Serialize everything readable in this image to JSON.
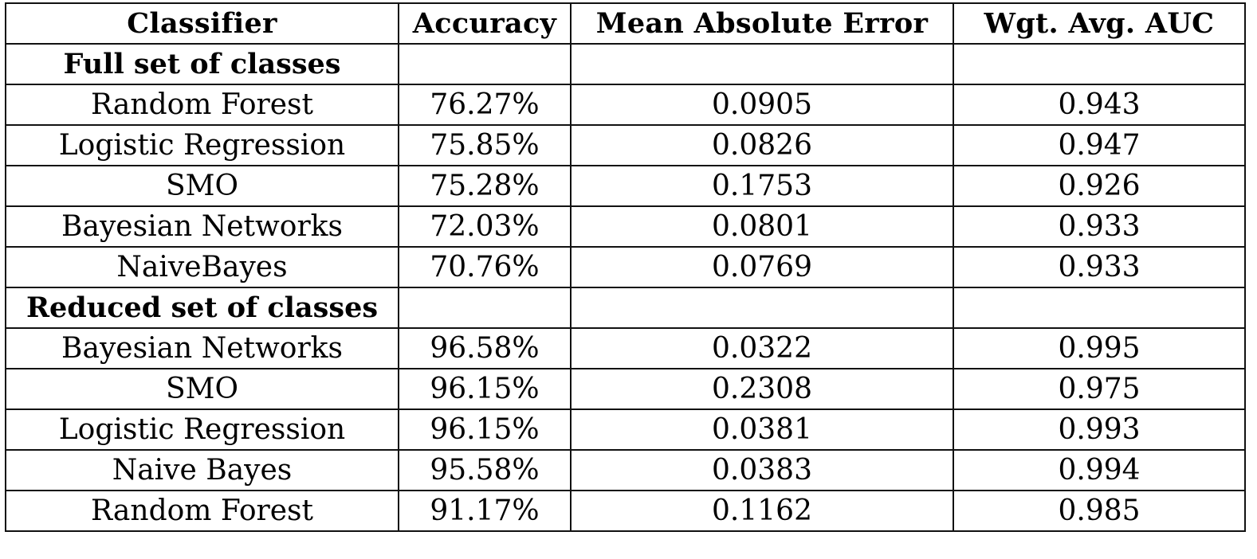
{
  "table": {
    "headers": [
      "Classifier",
      "Accuracy",
      "Mean Absolute Error",
      "Wgt. Avg. AUC"
    ],
    "sections": [
      {
        "title": "Full set of classes",
        "rows": [
          {
            "classifier": "Random Forest",
            "accuracy": "76.27%",
            "mae": "0.0905",
            "auc": "0.943"
          },
          {
            "classifier": "Logistic Regression",
            "accuracy": "75.85%",
            "mae": "0.0826",
            "auc": "0.947"
          },
          {
            "classifier": "SMO",
            "accuracy": "75.28%",
            "mae": "0.1753",
            "auc": "0.926"
          },
          {
            "classifier": "Bayesian Networks",
            "accuracy": "72.03%",
            "mae": "0.0801",
            "auc": "0.933"
          },
          {
            "classifier": "NaiveBayes",
            "accuracy": "70.76%",
            "mae": "0.0769",
            "auc": "0.933"
          }
        ]
      },
      {
        "title": "Reduced set of classes",
        "rows": [
          {
            "classifier": "Bayesian Networks",
            "accuracy": "96.58%",
            "mae": "0.0322",
            "auc": "0.995"
          },
          {
            "classifier": "SMO",
            "accuracy": "96.15%",
            "mae": "0.2308",
            "auc": "0.975"
          },
          {
            "classifier": "Logistic Regression",
            "accuracy": "96.15%",
            "mae": "0.0381",
            "auc": "0.993"
          },
          {
            "classifier": "Naive Bayes",
            "accuracy": "95.58%",
            "mae": "0.0383",
            "auc": "0.994"
          },
          {
            "classifier": "Random Forest",
            "accuracy": "91.17%",
            "mae": "0.1162",
            "auc": "0.985"
          }
        ]
      }
    ]
  }
}
